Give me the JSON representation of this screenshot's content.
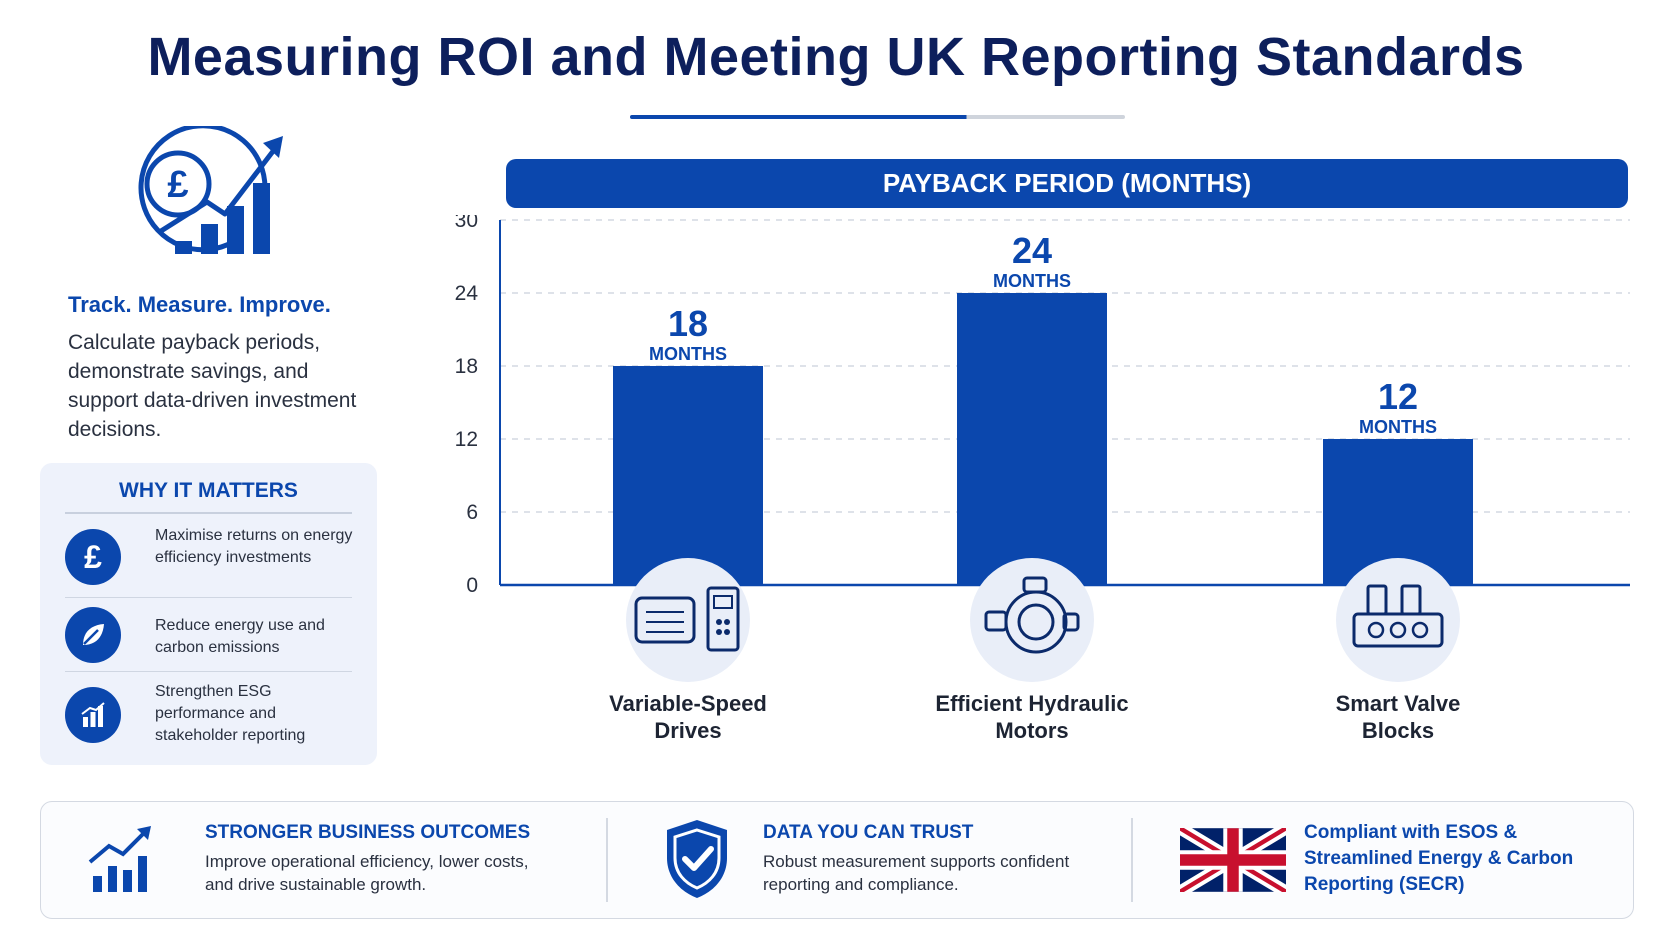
{
  "title": "Measuring ROI and Meeting UK Reporting Standards",
  "left": {
    "tagline": "Track. Measure. Improve.",
    "intro": "Calculate payback periods, demonstrate savings, and support data-driven investment decisions.",
    "why": {
      "title": "WHY IT MATTERS",
      "items": [
        {
          "icon": "pound-icon",
          "text": "Maximise returns on energy efficiency investments"
        },
        {
          "icon": "leaf-icon",
          "text": "Reduce energy use and carbon emissions"
        },
        {
          "icon": "bar-chart-icon",
          "text": "Strengthen ESG performance and stakeholder reporting"
        }
      ]
    }
  },
  "chart_header": "PAYBACK PERIOD (MONTHS)",
  "chart_data": {
    "type": "bar",
    "title": "PAYBACK PERIOD (MONTHS)",
    "ylabel": "Months",
    "xlabel": "",
    "categories": [
      "Variable-Speed Drives",
      "Efficient Hydraulic Motors",
      "Smart Valve Blocks"
    ],
    "category_icons": [
      "vsd-drive-icon",
      "hydraulic-motor-icon",
      "valve-block-icon"
    ],
    "values": [
      18,
      24,
      12
    ],
    "value_unit_label": "MONTHS",
    "ylim": [
      0,
      30
    ],
    "yticks": [
      0,
      6,
      12,
      18,
      24,
      30
    ],
    "grid": true,
    "bar_color": "#0b47ad"
  },
  "bottom": [
    {
      "icon": "growth-chart-icon",
      "heading": "STRONGER BUSINESS OUTCOMES",
      "text": "Improve operational efficiency, lower costs, and drive sustainable growth."
    },
    {
      "icon": "shield-check-icon",
      "heading": "DATA YOU CAN TRUST",
      "text": "Robust measurement supports confident reporting and compliance."
    },
    {
      "icon": "uk-flag-icon",
      "heading": "Compliant with ESOS & Streamlined Energy & Carbon Reporting (SECR)",
      "text": ""
    }
  ],
  "colors": {
    "primary": "#0b47ad",
    "navy": "#0d1f5c",
    "panel": "#eef2fb"
  }
}
